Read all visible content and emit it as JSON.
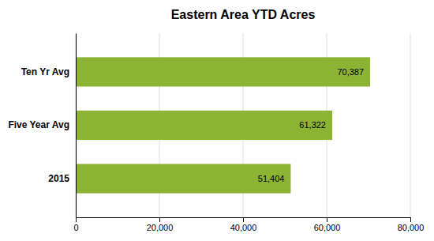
{
  "chart_data": {
    "type": "bar",
    "orientation": "horizontal",
    "title": "Eastern Area YTD Acres",
    "categories": [
      "2015",
      "Five Year Avg",
      "Ten Yr Avg"
    ],
    "values": [
      51404,
      61322,
      70387
    ],
    "value_labels": [
      "51,404",
      "61,322",
      "70,387"
    ],
    "data_labels": true,
    "color": "#8DB335",
    "xlim": [
      0,
      80000
    ],
    "xticks": [
      0,
      {
        "value": 20000,
        "label": "20,000"
      },
      {
        "value": 40000,
        "label": "40,000"
      },
      {
        "value": 60000,
        "label": "60,000"
      },
      {
        "value": 80000,
        "label": "80,000"
      }
    ],
    "grid": true
  }
}
